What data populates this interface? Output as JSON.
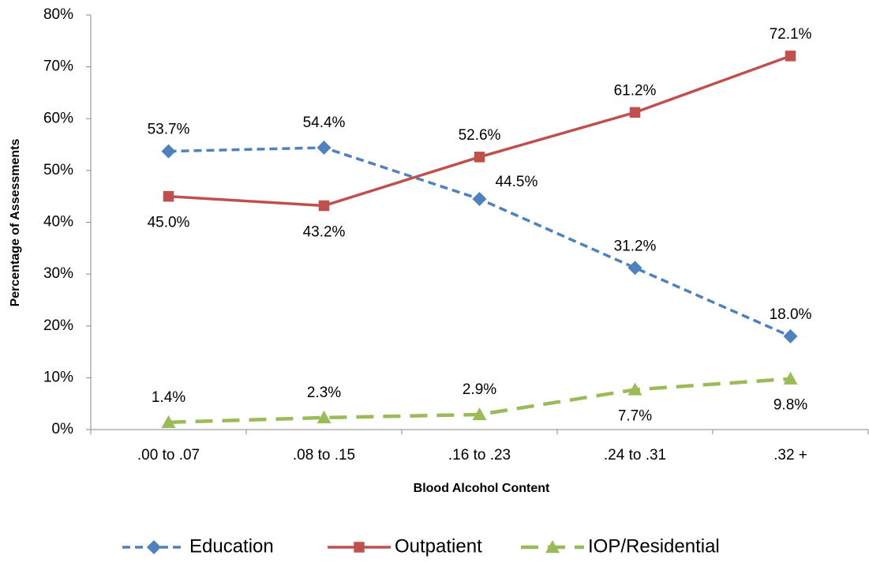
{
  "chart_data": {
    "type": "line",
    "x_label": "Blood Alcohol Content",
    "y_label": "Percentage of Assessments",
    "categories": [
      ".00 to .07",
      ".08 to .15",
      ".16 to .23",
      ".24 to .31",
      ".32 +"
    ],
    "series": [
      {
        "name": "Education",
        "color": "#4f81bd",
        "marker": "diamond",
        "dash": "dashed",
        "values": [
          53.7,
          54.4,
          44.5,
          31.2,
          18.0
        ],
        "value_labels": [
          "53.7%",
          "54.4%",
          "44.5%",
          "31.2%",
          "18.0%"
        ]
      },
      {
        "name": "Outpatient",
        "color": "#c0504d",
        "marker": "square",
        "dash": "solid",
        "values": [
          45.0,
          43.2,
          52.6,
          61.2,
          72.1
        ],
        "value_labels": [
          "45.0%",
          "43.2%",
          "52.6%",
          "61.2%",
          "72.1%"
        ]
      },
      {
        "name": "IOP/Residential",
        "color": "#9bbb59",
        "marker": "triangle",
        "dash": "long-dash",
        "values": [
          1.4,
          2.3,
          2.9,
          7.7,
          9.8
        ],
        "value_labels": [
          "1.4%",
          "2.3%",
          "2.9%",
          "7.7%",
          "9.8%"
        ]
      }
    ],
    "ylim": [
      0,
      80
    ],
    "yticks": [
      {
        "value": 0,
        "label": "0%"
      },
      {
        "value": 10,
        "label": "10%"
      },
      {
        "value": 20,
        "label": "20%"
      },
      {
        "value": 30,
        "label": "30%"
      },
      {
        "value": 40,
        "label": "40%"
      },
      {
        "value": 50,
        "label": "50%"
      },
      {
        "value": 60,
        "label": "60%"
      },
      {
        "value": 70,
        "label": "70%"
      },
      {
        "value": 80,
        "label": "80%"
      }
    ],
    "grid": false,
    "legend": "bottom"
  }
}
